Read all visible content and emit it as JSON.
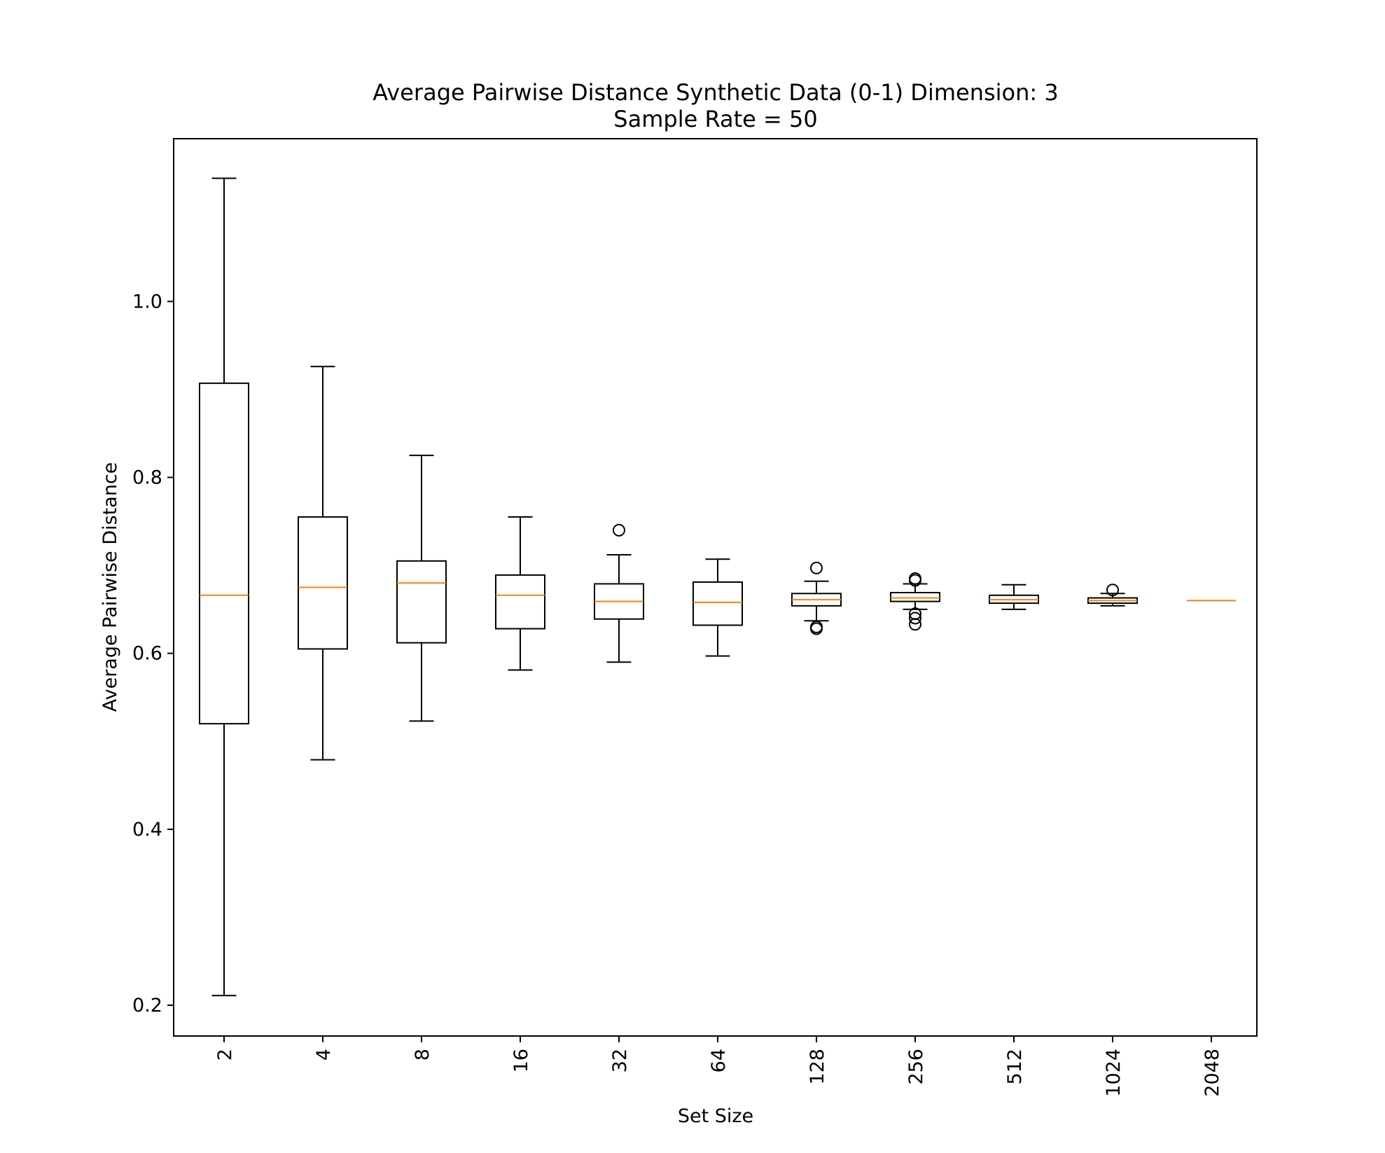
{
  "chart_data": {
    "type": "box",
    "title": "Average Pairwise Distance Synthetic Data (0-1) Dimension: 3",
    "subtitle": "Sample Rate = 50",
    "xlabel": "Set Size",
    "ylabel": "Average Pairwise Distance",
    "ylim": [
      0.165,
      1.185
    ],
    "yticks": [
      0.2,
      0.4,
      0.6,
      0.8,
      1.0
    ],
    "ytick_labels": [
      "0.2",
      "0.4",
      "0.6",
      "0.8",
      "1.0"
    ],
    "grid": false,
    "colors": {
      "box": "#000000",
      "median": "#ff7f0e",
      "axes": "#000000"
    },
    "categories": [
      "2",
      "4",
      "8",
      "16",
      "32",
      "64",
      "128",
      "256",
      "512",
      "1024",
      "2048"
    ],
    "boxes": [
      {
        "category": "2",
        "whisker_low": 0.211,
        "q1": 0.52,
        "median": 0.666,
        "q3": 0.907,
        "whisker_high": 1.14,
        "outliers": []
      },
      {
        "category": "4",
        "whisker_low": 0.479,
        "q1": 0.605,
        "median": 0.675,
        "q3": 0.755,
        "whisker_high": 0.926,
        "outliers": []
      },
      {
        "category": "8",
        "whisker_low": 0.523,
        "q1": 0.612,
        "median": 0.68,
        "q3": 0.705,
        "whisker_high": 0.825,
        "outliers": []
      },
      {
        "category": "16",
        "whisker_low": 0.581,
        "q1": 0.628,
        "median": 0.666,
        "q3": 0.689,
        "whisker_high": 0.755,
        "outliers": []
      },
      {
        "category": "32",
        "whisker_low": 0.59,
        "q1": 0.639,
        "median": 0.659,
        "q3": 0.679,
        "whisker_high": 0.712,
        "outliers": [
          0.74
        ]
      },
      {
        "category": "64",
        "whisker_low": 0.597,
        "q1": 0.632,
        "median": 0.658,
        "q3": 0.681,
        "whisker_high": 0.707,
        "outliers": []
      },
      {
        "category": "128",
        "whisker_low": 0.637,
        "q1": 0.654,
        "median": 0.661,
        "q3": 0.668,
        "whisker_high": 0.682,
        "outliers": [
          0.697,
          0.63,
          0.628
        ]
      },
      {
        "category": "256",
        "whisker_low": 0.65,
        "q1": 0.659,
        "median": 0.663,
        "q3": 0.669,
        "whisker_high": 0.679,
        "outliers": [
          0.685,
          0.683,
          0.645,
          0.64,
          0.633
        ]
      },
      {
        "category": "512",
        "whisker_low": 0.65,
        "q1": 0.657,
        "median": 0.661,
        "q3": 0.666,
        "whisker_high": 0.678,
        "outliers": []
      },
      {
        "category": "1024",
        "whisker_low": 0.654,
        "q1": 0.657,
        "median": 0.66,
        "q3": 0.663,
        "whisker_high": 0.668,
        "outliers": [
          0.672
        ]
      },
      {
        "category": "2048",
        "whisker_low": 0.66,
        "q1": 0.66,
        "median": 0.66,
        "q3": 0.66,
        "whisker_high": 0.66,
        "outliers": []
      }
    ]
  }
}
